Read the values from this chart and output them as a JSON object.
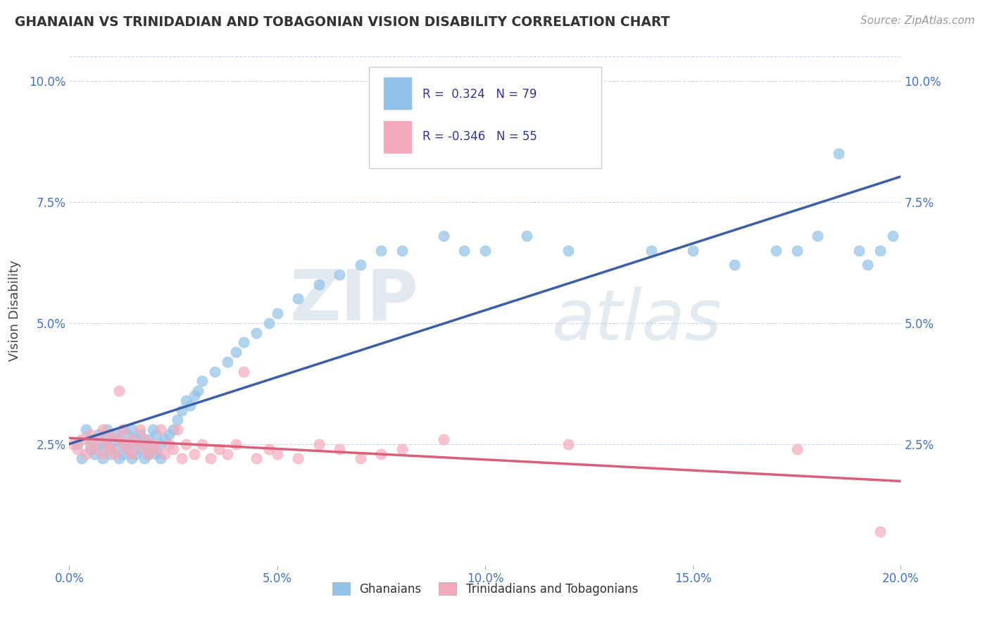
{
  "title": "GHANAIAN VS TRINIDADIAN AND TOBAGONIAN VISION DISABILITY CORRELATION CHART",
  "source": "Source: ZipAtlas.com",
  "ylabel": "Vision Disability",
  "xlim": [
    0.0,
    0.2
  ],
  "ylim": [
    0.0,
    0.105
  ],
  "yticks": [
    0.0,
    0.025,
    0.05,
    0.075,
    0.1
  ],
  "ytick_labels": [
    "",
    "2.5%",
    "5.0%",
    "7.5%",
    "10.0%"
  ],
  "xticks": [
    0.0,
    0.05,
    0.1,
    0.15,
    0.2
  ],
  "xtick_labels": [
    "0.0%",
    "5.0%",
    "10.0%",
    "15.0%",
    "20.0%"
  ],
  "legend_labels": [
    "Ghanaians",
    "Trinidadians and Tobagonians"
  ],
  "blue_color": "#91C3E8",
  "pink_color": "#F4AABB",
  "blue_line_color": "#3B5EA6",
  "pink_line_color": "#D95F7A",
  "dashed_line_color": "#8AABDA",
  "r_blue": 0.324,
  "n_blue": 79,
  "r_pink": -0.346,
  "n_pink": 55,
  "watermark_zip": "ZIP",
  "watermark_atlas": "atlas",
  "blue_scatter_x": [
    0.002,
    0.003,
    0.004,
    0.005,
    0.005,
    0.006,
    0.007,
    0.007,
    0.008,
    0.008,
    0.009,
    0.009,
    0.01,
    0.01,
    0.011,
    0.011,
    0.012,
    0.012,
    0.013,
    0.013,
    0.013,
    0.014,
    0.014,
    0.015,
    0.015,
    0.015,
    0.016,
    0.016,
    0.017,
    0.017,
    0.018,
    0.018,
    0.019,
    0.019,
    0.02,
    0.02,
    0.021,
    0.021,
    0.022,
    0.022,
    0.023,
    0.024,
    0.025,
    0.026,
    0.027,
    0.028,
    0.029,
    0.03,
    0.031,
    0.032,
    0.035,
    0.038,
    0.04,
    0.042,
    0.045,
    0.048,
    0.05,
    0.055,
    0.06,
    0.065,
    0.07,
    0.075,
    0.08,
    0.09,
    0.095,
    0.1,
    0.11,
    0.12,
    0.14,
    0.15,
    0.16,
    0.17,
    0.175,
    0.18,
    0.185,
    0.19,
    0.192,
    0.195,
    0.198
  ],
  "blue_scatter_y": [
    0.025,
    0.022,
    0.028,
    0.024,
    0.026,
    0.023,
    0.025,
    0.027,
    0.022,
    0.024,
    0.026,
    0.028,
    0.023,
    0.025,
    0.024,
    0.027,
    0.022,
    0.026,
    0.023,
    0.025,
    0.028,
    0.024,
    0.027,
    0.022,
    0.025,
    0.028,
    0.023,
    0.026,
    0.024,
    0.027,
    0.022,
    0.025,
    0.023,
    0.026,
    0.024,
    0.028,
    0.023,
    0.027,
    0.022,
    0.025,
    0.026,
    0.027,
    0.028,
    0.03,
    0.032,
    0.034,
    0.033,
    0.035,
    0.036,
    0.038,
    0.04,
    0.042,
    0.044,
    0.046,
    0.048,
    0.05,
    0.052,
    0.055,
    0.058,
    0.06,
    0.062,
    0.065,
    0.065,
    0.068,
    0.065,
    0.065,
    0.068,
    0.065,
    0.065,
    0.065,
    0.062,
    0.065,
    0.065,
    0.068,
    0.085,
    0.065,
    0.062,
    0.065,
    0.068
  ],
  "pink_scatter_x": [
    0.001,
    0.002,
    0.003,
    0.004,
    0.005,
    0.005,
    0.006,
    0.007,
    0.008,
    0.008,
    0.009,
    0.01,
    0.01,
    0.011,
    0.012,
    0.012,
    0.013,
    0.013,
    0.014,
    0.015,
    0.015,
    0.016,
    0.017,
    0.018,
    0.018,
    0.019,
    0.02,
    0.021,
    0.022,
    0.023,
    0.024,
    0.025,
    0.026,
    0.027,
    0.028,
    0.03,
    0.032,
    0.034,
    0.036,
    0.038,
    0.04,
    0.042,
    0.045,
    0.048,
    0.05,
    0.055,
    0.06,
    0.065,
    0.07,
    0.075,
    0.08,
    0.09,
    0.12,
    0.175,
    0.195
  ],
  "pink_scatter_y": [
    0.025,
    0.024,
    0.026,
    0.023,
    0.025,
    0.027,
    0.024,
    0.026,
    0.023,
    0.028,
    0.025,
    0.024,
    0.027,
    0.023,
    0.026,
    0.036,
    0.025,
    0.028,
    0.024,
    0.023,
    0.026,
    0.025,
    0.028,
    0.024,
    0.026,
    0.023,
    0.025,
    0.024,
    0.028,
    0.023,
    0.025,
    0.024,
    0.028,
    0.022,
    0.025,
    0.023,
    0.025,
    0.022,
    0.024,
    0.023,
    0.025,
    0.04,
    0.022,
    0.024,
    0.023,
    0.022,
    0.025,
    0.024,
    0.022,
    0.023,
    0.024,
    0.026,
    0.025,
    0.024,
    0.007
  ]
}
